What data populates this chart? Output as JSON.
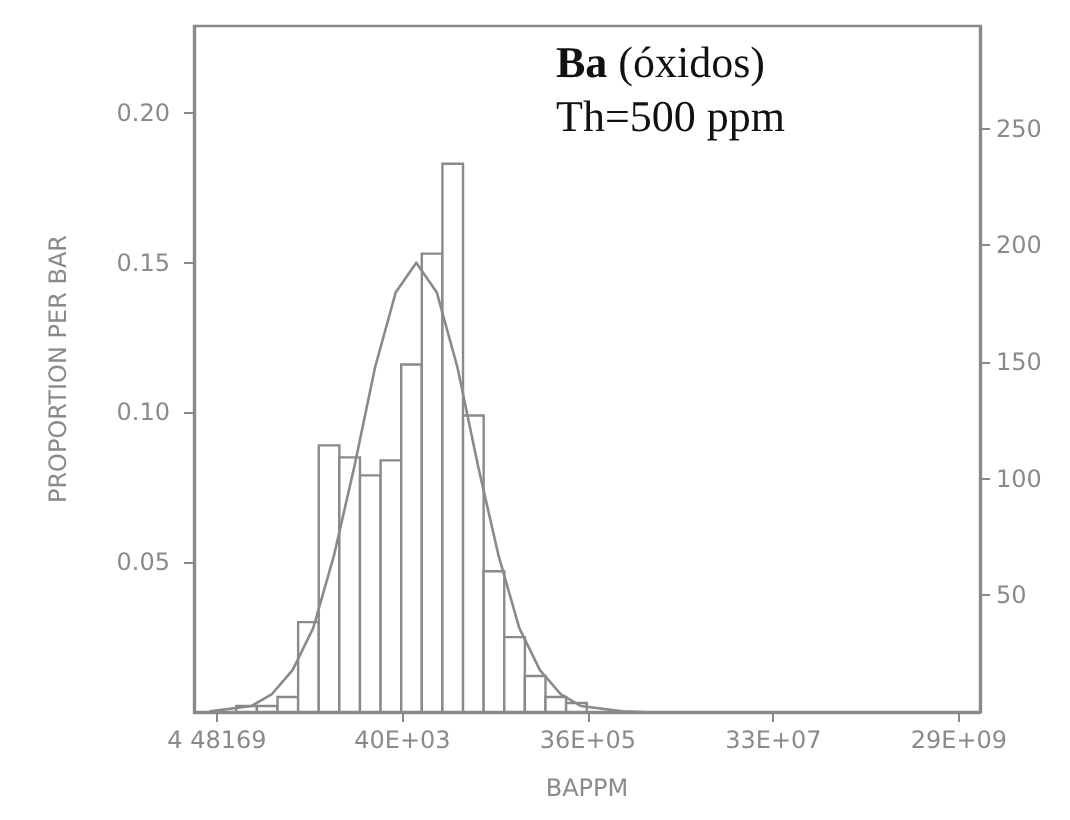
{
  "chart_data": {
    "type": "histogram",
    "xlabel": "BAPPM",
    "ylabel": "PROPORTION PER BAR",
    "annotations": [
      "Ba (óxidos)",
      "Th=500 ppm"
    ],
    "log": "x",
    "bins": [
      717,
      1182,
      1949,
      3213,
      5298,
      8735,
      14402,
      23745,
      39149,
      64546,
      106420,
      175460,
      289280,
      476940,
      786330,
      1296450,
      2137500,
      3524100
    ],
    "series": [
      {
        "color": "#8a8a8a",
        "values": [
          0.002,
          0.002,
          0.005,
          0.03,
          0.089,
          0.085,
          0.079,
          0.084,
          0.116,
          0.153,
          0.183,
          0.099,
          0.047,
          0.025,
          0.012,
          0.005,
          0.003
        ]
      },
      {
        "type": "line",
        "color": "#8a8a8a",
        "x": [
          380,
          1033,
          1703,
          2808,
          4629,
          7633,
          12585,
          20749,
          34210,
          56403,
          92993,
          153320,
          252780,
          416770,
          687140,
          1132900,
          1867800,
          3079500,
          8371000,
          13800000
        ],
        "values": [
          0.0002,
          0.002,
          0.006,
          0.014,
          0.028,
          0.052,
          0.082,
          0.115,
          0.14,
          0.15,
          0.14,
          0.115,
          0.082,
          0.052,
          0.028,
          0.014,
          0.006,
          0.002,
          0.0002,
          0
        ]
      }
    ],
    "xlim": [
      257,
      49000000000
    ],
    "xticks": [
      {
        "value": 448.169,
        "label": "4 48169"
      },
      {
        "value": 40343,
        "label": "40E+03"
      },
      {
        "value": 3631400,
        "label": "36E+05"
      },
      {
        "value": 326890000,
        "label": "33E+07"
      },
      {
        "value": 29426000000,
        "label": "29E+09"
      }
    ],
    "ylim": [
      0,
      0.229
    ],
    "yticks": [
      {
        "value": 0.05,
        "label": "0.05"
      },
      {
        "value": 0.1,
        "label": "0.10"
      },
      {
        "value": 0.15,
        "label": "0.15"
      },
      {
        "value": 0.2,
        "label": "0.20"
      }
    ],
    "y2lim": [
      0,
      294
    ],
    "y2ticks": [
      50,
      100,
      150,
      200,
      250
    ],
    "grid": false
  }
}
